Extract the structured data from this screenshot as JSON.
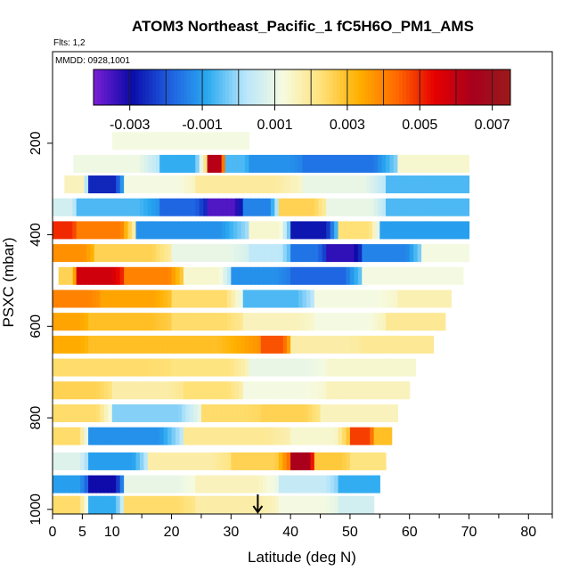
{
  "chart_data": {
    "type": "heatmap",
    "title": "ATOM3 Northeast_Pacific_1 fC5H6O_PM1_AMS",
    "flights_label": "Flts: 1,2",
    "date_label": "MMDD: 0928,1001",
    "xlabel": "Latitude (deg N)",
    "ylabel": "PSXC (mbar)",
    "xlim": [
      0,
      84
    ],
    "ylim": [
      1010,
      0
    ],
    "x_ticks": [
      0,
      5,
      10,
      20,
      30,
      40,
      50,
      60,
      70,
      80
    ],
    "x_minor_ticks": [
      15,
      25,
      35,
      45,
      55,
      65,
      75,
      84
    ],
    "y_ticks": [
      200,
      400,
      600,
      800,
      1000
    ],
    "colorbar": {
      "breaks": [
        -0.004,
        -0.003,
        -0.002,
        -0.001,
        0.0,
        0.001,
        0.002,
        0.003,
        0.004,
        0.005,
        0.006,
        0.007,
        0.0075
      ],
      "tick_values": [
        -0.003,
        -0.001,
        0.001,
        0.003,
        0.005,
        0.007
      ],
      "tick_labels": [
        "-0.003",
        "-0.001",
        "0.001",
        "0.003",
        "0.005",
        "0.007"
      ],
      "colors": [
        "#7b1fd6",
        "#0a0aa8",
        "#1e5ee0",
        "#29a9f0",
        "#b8e6fb",
        "#f6fbe0",
        "#ffe27a",
        "#ffb000",
        "#ff6a00",
        "#e60000",
        "#a8001e",
        "#9a1b1b"
      ]
    },
    "marker": {
      "x": 34.5,
      "label": "arrow"
    },
    "rows": [
      {
        "p": 195,
        "x0": 10,
        "x1": 33,
        "segments": [
          [
            10,
            33,
            0.0012
          ]
        ]
      },
      {
        "p": 245,
        "x0": 3.5,
        "x1": 70,
        "segments": [
          [
            3.5,
            18,
            0.0011
          ],
          [
            18,
            26,
            -0.0008
          ],
          [
            26,
            29,
            0.0062
          ],
          [
            29,
            33,
            -0.0006
          ],
          [
            33,
            42,
            -0.0012
          ],
          [
            42,
            58,
            -0.0016
          ],
          [
            58,
            70,
            0.0014
          ]
        ]
      },
      {
        "p": 290,
        "x0": 2,
        "x1": 70,
        "segments": [
          [
            2,
            6,
            0.0016
          ],
          [
            6,
            12,
            -0.0026
          ],
          [
            12,
            24,
            0.0012
          ],
          [
            24,
            42,
            0.0019
          ],
          [
            42,
            56,
            0.001
          ],
          [
            56,
            70,
            -0.0006
          ]
        ]
      },
      {
        "p": 340,
        "x0": 0,
        "x1": 70,
        "segments": [
          [
            0,
            4,
            0.0006
          ],
          [
            4,
            18,
            -0.0006
          ],
          [
            18,
            26,
            -0.0018
          ],
          [
            26,
            32,
            -0.0036
          ],
          [
            32,
            38,
            -0.0014
          ],
          [
            38,
            46,
            0.0026
          ],
          [
            46,
            56,
            0.001
          ],
          [
            56,
            70,
            -0.0006
          ]
        ]
      },
      {
        "p": 390,
        "x0": 0,
        "x1": 70,
        "segments": [
          [
            0,
            4,
            0.005
          ],
          [
            4,
            14,
            0.0041
          ],
          [
            14,
            33,
            -0.0012
          ],
          [
            33,
            40,
            0.0014
          ],
          [
            40,
            48,
            -0.0028
          ],
          [
            48,
            55,
            0.0023
          ],
          [
            55,
            70,
            -0.001
          ]
        ]
      },
      {
        "p": 440,
        "x0": 0,
        "x1": 70,
        "segments": [
          [
            0,
            7,
            0.0038
          ],
          [
            7,
            20,
            0.0026
          ],
          [
            20,
            33,
            0.001
          ],
          [
            33,
            40,
            0.0003
          ],
          [
            40,
            46,
            -0.0016
          ],
          [
            46,
            52,
            -0.0033
          ],
          [
            52,
            62,
            -0.0014
          ],
          [
            62,
            70,
            0.0012
          ]
        ]
      },
      {
        "p": 490,
        "x0": 1,
        "x1": 69,
        "segments": [
          [
            1,
            4,
            0.0026
          ],
          [
            4,
            12,
            0.0058
          ],
          [
            12,
            22,
            0.004
          ],
          [
            22,
            30,
            0.0014
          ],
          [
            30,
            40,
            -0.0012
          ],
          [
            40,
            52,
            -0.0018
          ],
          [
            52,
            69,
            0.0012
          ]
        ]
      },
      {
        "p": 540,
        "x0": 0,
        "x1": 67,
        "segments": [
          [
            0,
            8,
            0.004
          ],
          [
            8,
            20,
            0.0035
          ],
          [
            20,
            32,
            0.0024
          ],
          [
            32,
            44,
            -0.0006
          ],
          [
            44,
            58,
            0.0012
          ],
          [
            58,
            67,
            0.0017
          ]
        ]
      },
      {
        "p": 590,
        "x0": 0,
        "x1": 66,
        "segments": [
          [
            0,
            6,
            0.0035
          ],
          [
            6,
            20,
            0.003
          ],
          [
            20,
            32,
            0.0024
          ],
          [
            32,
            44,
            0.0016
          ],
          [
            44,
            56,
            0.0012
          ],
          [
            56,
            66,
            0.002
          ]
        ]
      },
      {
        "p": 640,
        "x0": 0,
        "x1": 64,
        "segments": [
          [
            0,
            6,
            0.0034
          ],
          [
            6,
            35,
            0.003
          ],
          [
            35,
            40,
            0.0046
          ],
          [
            40,
            52,
            0.0018
          ],
          [
            52,
            64,
            0.002
          ]
        ]
      },
      {
        "p": 690,
        "x0": 0,
        "x1": 61,
        "segments": [
          [
            0,
            20,
            0.0024
          ],
          [
            20,
            33,
            0.0022
          ],
          [
            33,
            46,
            0.001
          ],
          [
            46,
            61,
            0.0014
          ]
        ]
      },
      {
        "p": 740,
        "x0": 0,
        "x1": 60,
        "segments": [
          [
            0,
            10,
            0.0026
          ],
          [
            10,
            22,
            0.0018
          ],
          [
            22,
            32,
            0.0023
          ],
          [
            32,
            46,
            0.0012
          ],
          [
            46,
            60,
            0.0016
          ]
        ]
      },
      {
        "p": 790,
        "x0": 0,
        "x1": 58,
        "segments": [
          [
            0,
            10,
            0.0024
          ],
          [
            10,
            25,
            -0.0002
          ],
          [
            25,
            35,
            0.0024
          ],
          [
            35,
            45,
            0.0026
          ],
          [
            45,
            58,
            0.0016
          ]
        ]
      },
      {
        "p": 840,
        "x0": 0,
        "x1": 57,
        "segments": [
          [
            0,
            6,
            0.0024
          ],
          [
            6,
            22,
            -0.0012
          ],
          [
            22,
            40,
            0.002
          ],
          [
            40,
            50,
            0.0014
          ],
          [
            50,
            54,
            0.0048
          ],
          [
            54,
            57,
            0.003
          ]
        ]
      },
      {
        "p": 895,
        "x0": 0,
        "x1": 56,
        "segments": [
          [
            0,
            6,
            0.0008
          ],
          [
            6,
            16,
            -0.001
          ],
          [
            16,
            30,
            0.0018
          ],
          [
            30,
            40,
            0.0026
          ],
          [
            40,
            44,
            0.0064
          ],
          [
            44,
            50,
            0.0028
          ],
          [
            50,
            56,
            0.0022
          ]
        ]
      },
      {
        "p": 945,
        "x0": 0,
        "x1": 55,
        "segments": [
          [
            0,
            6,
            -0.001
          ],
          [
            6,
            12,
            -0.003
          ],
          [
            12,
            24,
            0.001
          ],
          [
            24,
            38,
            0.0016
          ],
          [
            38,
            48,
            0.0004
          ],
          [
            48,
            55,
            -0.0008
          ]
        ]
      },
      {
        "p": 990,
        "x0": 0,
        "x1": 54,
        "segments": [
          [
            0,
            6,
            0.0024
          ],
          [
            6,
            12,
            -0.0008
          ],
          [
            12,
            24,
            0.0024
          ],
          [
            24,
            38,
            0.0018
          ],
          [
            38,
            48,
            0.0012
          ],
          [
            48,
            54,
            0.0006
          ]
        ]
      }
    ]
  }
}
